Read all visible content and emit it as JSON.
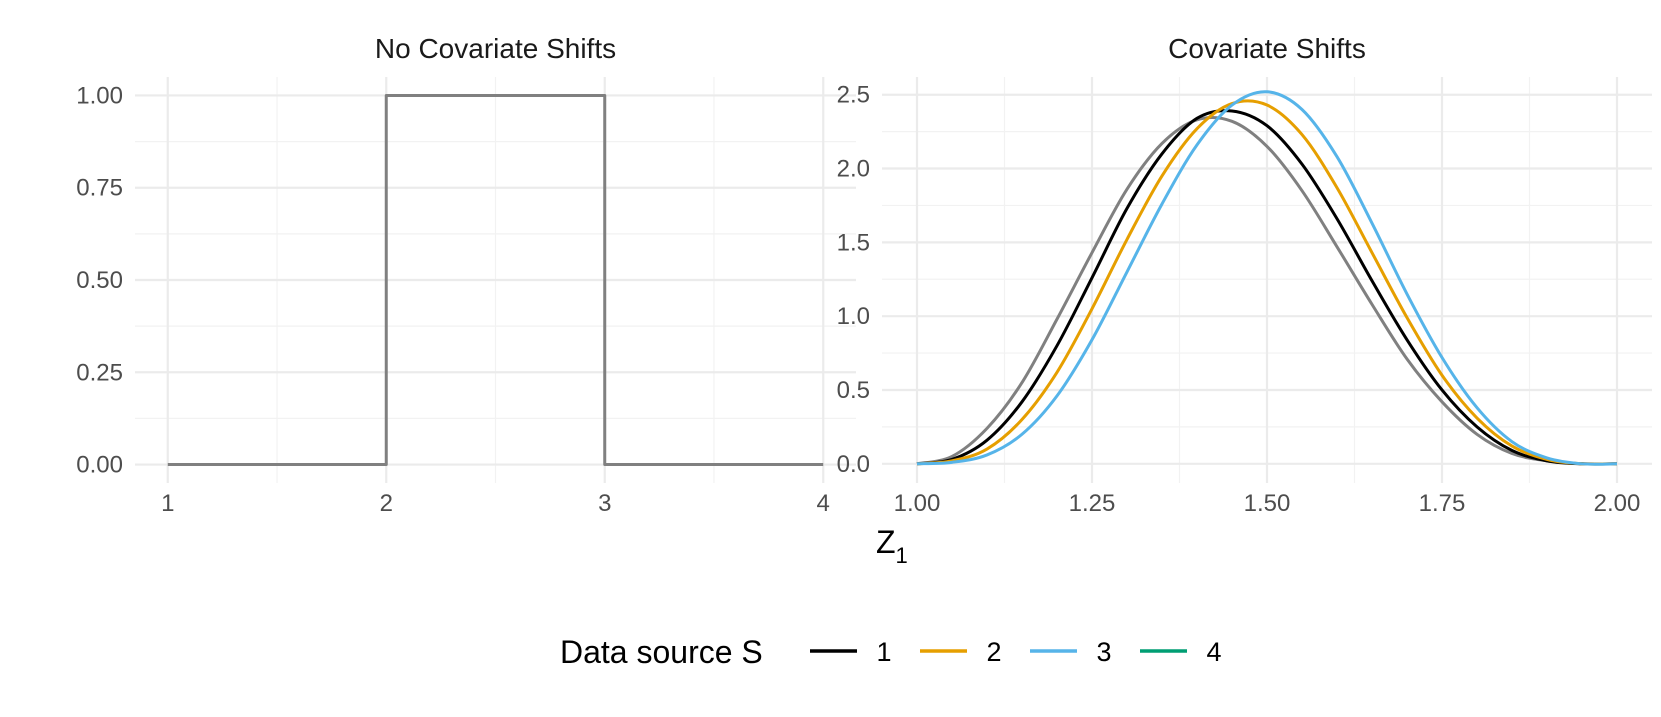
{
  "chart_data": [
    {
      "type": "line",
      "title": "No Covariate Shifts",
      "xlim": [
        0.85,
        4.15
      ],
      "ylim": [
        -0.05,
        1.05
      ],
      "xticks": [
        1,
        2,
        3,
        4
      ],
      "xtick_labels": [
        "1",
        "2",
        "3",
        "4"
      ],
      "yticks": [
        0,
        0.25,
        0.5,
        0.75,
        1.0
      ],
      "ytick_labels": [
        "0.00",
        "0.25",
        "0.50",
        "0.75",
        "1.00"
      ],
      "grid": true,
      "series": [
        {
          "color": "#808080",
          "x": [
            1,
            2,
            2,
            3,
            3,
            4
          ],
          "y": [
            0,
            0,
            1,
            1,
            0,
            0
          ]
        }
      ]
    },
    {
      "type": "line",
      "title": "Covariate Shifts",
      "xlim": [
        0.95,
        2.05
      ],
      "ylim": [
        -0.13,
        2.62
      ],
      "xticks": [
        1.0,
        1.25,
        1.5,
        1.75,
        2.0
      ],
      "xtick_labels": [
        "1.00",
        "1.25",
        "1.50",
        "1.75",
        "2.00"
      ],
      "yticks": [
        0,
        0.5,
        1.0,
        1.5,
        2.0,
        2.5
      ],
      "ytick_labels": [
        "0.0",
        "0.5",
        "1.0",
        "1.5",
        "2.0",
        "2.5"
      ],
      "grid": true,
      "series": [
        {
          "color": "#808080",
          "x": [
            1.0,
            1.05,
            1.1,
            1.15,
            1.2,
            1.25,
            1.3,
            1.35,
            1.4,
            1.45,
            1.5,
            1.55,
            1.6,
            1.65,
            1.7,
            1.75,
            1.8,
            1.85,
            1.9,
            1.95,
            2.0
          ],
          "y": [
            0.0,
            0.05,
            0.24,
            0.55,
            0.98,
            1.43,
            1.86,
            2.17,
            2.33,
            2.32,
            2.15,
            1.85,
            1.47,
            1.08,
            0.71,
            0.42,
            0.2,
            0.07,
            0.02,
            0.0,
            0.0
          ]
        },
        {
          "color": "#000000",
          "x": [
            1.0,
            1.05,
            1.1,
            1.15,
            1.2,
            1.25,
            1.3,
            1.35,
            1.4,
            1.45,
            1.5,
            1.55,
            1.6,
            1.65,
            1.7,
            1.75,
            1.8,
            1.85,
            1.9,
            1.95,
            2.0
          ],
          "y": [
            0.0,
            0.03,
            0.16,
            0.42,
            0.8,
            1.26,
            1.73,
            2.1,
            2.34,
            2.39,
            2.29,
            2.03,
            1.66,
            1.24,
            0.84,
            0.5,
            0.25,
            0.09,
            0.02,
            0.0,
            0.0
          ]
        },
        {
          "color": "#E69F00",
          "x": [
            1.0,
            1.05,
            1.1,
            1.15,
            1.2,
            1.25,
            1.3,
            1.35,
            1.4,
            1.45,
            1.5,
            1.55,
            1.6,
            1.65,
            1.7,
            1.75,
            1.8,
            1.85,
            1.9,
            1.95,
            2.0
          ],
          "y": [
            0.0,
            0.02,
            0.1,
            0.3,
            0.62,
            1.05,
            1.52,
            1.95,
            2.27,
            2.44,
            2.43,
            2.23,
            1.87,
            1.43,
            0.99,
            0.6,
            0.31,
            0.12,
            0.03,
            0.0,
            0.0
          ]
        },
        {
          "color": "#56B4E9",
          "x": [
            1.0,
            1.05,
            1.1,
            1.15,
            1.2,
            1.25,
            1.3,
            1.35,
            1.4,
            1.45,
            1.5,
            1.55,
            1.6,
            1.65,
            1.7,
            1.75,
            1.8,
            1.85,
            1.9,
            1.95,
            2.0
          ],
          "y": [
            0.0,
            0.01,
            0.06,
            0.2,
            0.46,
            0.84,
            1.3,
            1.76,
            2.16,
            2.43,
            2.52,
            2.4,
            2.08,
            1.63,
            1.15,
            0.72,
            0.38,
            0.15,
            0.04,
            0.0,
            0.0
          ]
        }
      ]
    }
  ],
  "xlabel": {
    "main": "Z",
    "sub": "1"
  },
  "legend": {
    "title": "Data source S",
    "position": "bottom",
    "items": [
      {
        "label": "1",
        "color": "#000000"
      },
      {
        "label": "2",
        "color": "#E69F00"
      },
      {
        "label": "3",
        "color": "#56B4E9"
      },
      {
        "label": "4",
        "color": "#009E73"
      }
    ]
  }
}
